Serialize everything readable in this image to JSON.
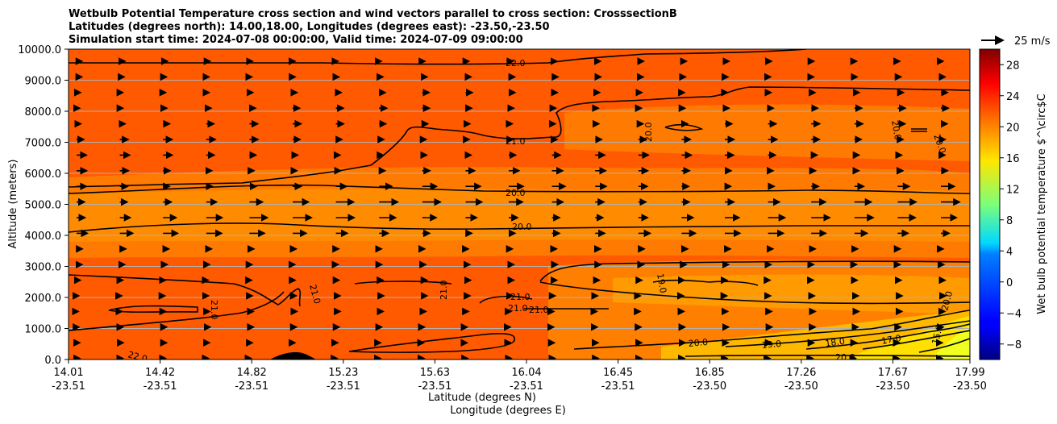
{
  "chart_data": {
    "type": "heatmap",
    "title": [
      "Wetbulb Potential Temperature cross section and wind vectors parallel to cross section: CrosssectionB",
      "Latitudes (degrees north): 14.00,18.00, Longitudes (degrees east): -23.50,-23.50",
      "Simulation start time: 2024-07-08 00:00:00, Valid time: 2024-07-09 09:00:00"
    ],
    "ylabel": "Altitude (meters)",
    "xlabel": [
      "Latitude (degrees N)",
      "Longitude (degrees E)"
    ],
    "ylim": [
      0,
      10000
    ],
    "xlim": [
      14.01,
      17.99
    ],
    "y_ticks": [
      "0.0",
      "1000.0",
      "2000.0",
      "3000.0",
      "4000.0",
      "5000.0",
      "6000.0",
      "7000.0",
      "8000.0",
      "9000.0",
      "10000.0"
    ],
    "x_ticks": [
      {
        "lat": "14.01",
        "lon": "-23.51"
      },
      {
        "lat": "14.42",
        "lon": "-23.51"
      },
      {
        "lat": "14.82",
        "lon": "-23.51"
      },
      {
        "lat": "15.23",
        "lon": "-23.51"
      },
      {
        "lat": "15.63",
        "lon": "-23.51"
      },
      {
        "lat": "16.04",
        "lon": "-23.51"
      },
      {
        "lat": "16.45",
        "lon": "-23.51"
      },
      {
        "lat": "16.85",
        "lon": "-23.50"
      },
      {
        "lat": "17.26",
        "lon": "-23.50"
      },
      {
        "lat": "17.67",
        "lon": "-23.50"
      },
      {
        "lat": "17.99",
        "lon": "-23.50"
      }
    ],
    "grid": "horizontal",
    "colorbar": {
      "label": "Wet bulb potential temperature $^\\circ$C",
      "min": -10,
      "max": 30,
      "ticks": [
        "−8",
        "−4",
        "0",
        "4",
        "8",
        "12",
        "16",
        "20",
        "24",
        "28"
      ],
      "colormap": "jet"
    },
    "quiver_key": {
      "label": "25 m/s",
      "speed": 25
    },
    "contour_levels": [
      {
        "value": 22.0,
        "label": "22.0"
      },
      {
        "value": 21.0,
        "label": "21.0"
      },
      {
        "value": 20.0,
        "label": "20.0"
      },
      {
        "value": 19.0,
        "label": "19.0"
      },
      {
        "value": 18.0,
        "label": "18.0"
      },
      {
        "value": 17.0,
        "label": "17.0"
      },
      {
        "value": 15.0,
        "label": "15.0"
      }
    ],
    "field_description": {
      "background_value": 22.5,
      "mid_layer_value": 20.5,
      "lower_right_min_value": 15.0
    }
  }
}
